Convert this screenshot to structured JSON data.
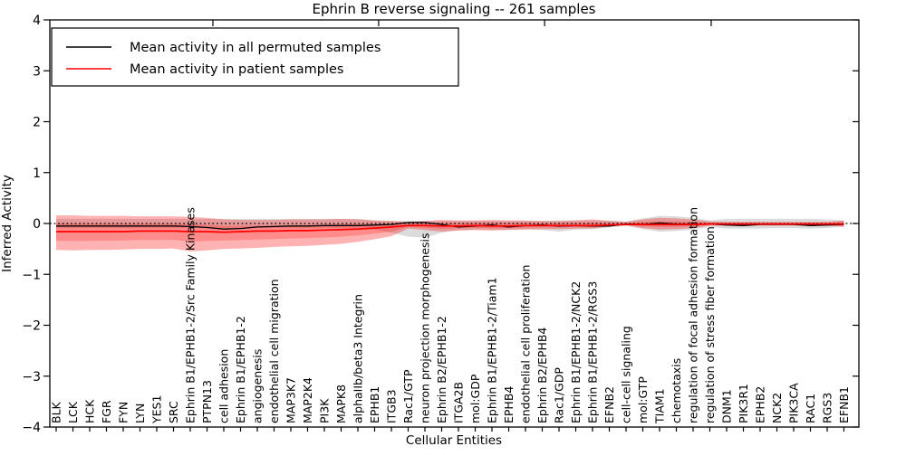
{
  "chart_data": {
    "type": "line",
    "title": "Ephrin B reverse signaling -- 261 samples",
    "xlabel": "Cellular Entities",
    "ylabel": "Inferred Activity",
    "ylim": [
      -4,
      4
    ],
    "yticks": [
      "4",
      "3",
      "2",
      "1",
      "0",
      "-1",
      "-2",
      "-3",
      "-4"
    ],
    "ytick_values": [
      4,
      3,
      2,
      1,
      0,
      -1,
      -2,
      -3,
      -4
    ],
    "top_tick_data_x": [
      9.35,
      19.24,
      29.14,
      39.08
    ],
    "grid": false,
    "zero_reference_line": "dotted at y=0",
    "legend": {
      "position": "upper left",
      "entries": [
        {
          "label": "Mean activity in all permuted samples",
          "color": "#000000"
        },
        {
          "label": "Mean activity in patient samples",
          "color": "#ff0000"
        }
      ]
    },
    "colors": {
      "patient": "#ff0000",
      "permuted": "#000000",
      "patient_band_fill": "#ff0000",
      "permuted_band_fill": "#888888",
      "frame": "#000000",
      "background": "#ffffff"
    },
    "categories": [
      "BLK",
      "LCK",
      "HCK",
      "FGR",
      "FYN",
      "LYN",
      "YES1",
      "SRC",
      "Ephrin B1/EPHB1-2/Src Family Kinases",
      "PTPN13",
      "cell adhesion",
      "Ephrin B1/EPHB1-2",
      "angiogenesis",
      "endothelial cell migration",
      "MAP3K7",
      "MAP2K4",
      "PI3K",
      "MAPK8",
      "alphaIIb/beta3 Integrin",
      "EPHB1",
      "ITGB3",
      "Rac1/GTP",
      "neuron projection morphogenesis",
      "Ephrin B2/EPHB1-2",
      "ITGA2B",
      "mol:GDP",
      "Ephrin B1/EPHB1-2/Tiam1",
      "EPHB4",
      "endothelial cell proliferation",
      "Ephrin B2/EPHB4",
      "Rac1/GDP",
      "Ephrin B1/EPHB1-2/NCK2",
      "Ephrin B1/EPHB1-2/RGS3",
      "EFNB2",
      "cell-cell signaling",
      "mol:GTP",
      "TIAM1",
      "chemotaxis",
      "regulation of focal adhesion formation",
      "regulation of stress fiber formation",
      "DNM1",
      "PIK3R1",
      "EPHB2",
      "NCK2",
      "PIK3CA",
      "RAC1",
      "RGS3",
      "EFNB1"
    ],
    "series": [
      {
        "name": "Mean activity in all permuted samples",
        "color": "#000000",
        "values": [
          -0.05,
          -0.05,
          -0.05,
          -0.05,
          -0.05,
          -0.05,
          -0.05,
          -0.05,
          -0.06,
          -0.08,
          -0.11,
          -0.1,
          -0.07,
          -0.06,
          -0.05,
          -0.05,
          -0.04,
          -0.04,
          -0.04,
          -0.03,
          -0.02,
          0.02,
          0.02,
          -0.02,
          -0.07,
          -0.05,
          -0.03,
          -0.07,
          -0.04,
          -0.03,
          -0.05,
          -0.04,
          -0.05,
          -0.05,
          -0.01,
          -0.02,
          0.01,
          -0.01,
          -0.02,
          -0.01,
          -0.03,
          -0.04,
          -0.02,
          -0.02,
          -0.02,
          -0.04,
          -0.03,
          -0.02
        ]
      },
      {
        "name": "Mean activity in patient samples",
        "color": "#ff0000",
        "values": [
          -0.16,
          -0.16,
          -0.16,
          -0.16,
          -0.16,
          -0.15,
          -0.15,
          -0.15,
          -0.16,
          -0.16,
          -0.17,
          -0.16,
          -0.15,
          -0.15,
          -0.14,
          -0.14,
          -0.13,
          -0.12,
          -0.11,
          -0.09,
          -0.07,
          -0.04,
          -0.04,
          -0.05,
          -0.05,
          -0.04,
          -0.05,
          -0.05,
          -0.04,
          -0.04,
          -0.04,
          -0.04,
          -0.04,
          -0.03,
          -0.02,
          -0.02,
          -0.02,
          -0.02,
          -0.02,
          -0.01,
          -0.01,
          -0.01,
          -0.01,
          -0.01,
          -0.01,
          -0.01,
          -0.01,
          -0.01
        ]
      }
    ],
    "bands": [
      {
        "name": "permuted-samples-envelope",
        "color": "#888888",
        "opacity": 0.3,
        "upper": [
          0.09,
          0.09,
          0.09,
          0.09,
          0.09,
          0.09,
          0.09,
          0.09,
          0.09,
          0.09,
          0.09,
          0.09,
          0.09,
          0.09,
          0.09,
          0.09,
          0.09,
          0.09,
          0.09,
          0.06,
          0.05,
          0.05,
          0.05,
          0.05,
          0.05,
          0.05,
          0.05,
          0.05,
          0.05,
          0.05,
          0.06,
          0.06,
          0.06,
          0.06,
          0.04,
          0.1,
          0.15,
          0.14,
          0.11,
          0.06,
          0.09,
          0.09,
          0.09,
          0.09,
          0.09,
          0.09,
          0.08,
          0.06
        ],
        "lower": [
          -0.09,
          -0.09,
          -0.09,
          -0.09,
          -0.09,
          -0.09,
          -0.09,
          -0.09,
          -0.09,
          -0.09,
          -0.09,
          -0.09,
          -0.09,
          -0.09,
          -0.09,
          -0.09,
          -0.09,
          -0.09,
          -0.09,
          -0.12,
          -0.18,
          -0.26,
          -0.28,
          -0.18,
          -0.13,
          -0.12,
          -0.12,
          -0.12,
          -0.11,
          -0.13,
          -0.16,
          -0.12,
          -0.11,
          -0.08,
          -0.05,
          -0.11,
          -0.16,
          -0.15,
          -0.12,
          -0.07,
          -0.1,
          -0.1,
          -0.1,
          -0.09,
          -0.09,
          -0.1,
          -0.09,
          -0.06
        ]
      },
      {
        "name": "patient-samples-envelope",
        "color": "#ff0000",
        "opacity": 0.3,
        "inner_band_fraction": 0.5,
        "inner_band_opacity": 0.22,
        "upper": [
          0.16,
          0.16,
          0.15,
          0.15,
          0.15,
          0.14,
          0.14,
          0.14,
          0.13,
          0.11,
          0.08,
          0.07,
          0.07,
          0.07,
          0.08,
          0.08,
          0.08,
          0.09,
          0.08,
          0.06,
          0.05,
          0.03,
          0.05,
          0.07,
          0.06,
          0.06,
          0.07,
          0.06,
          0.06,
          0.05,
          0.05,
          0.06,
          0.08,
          0.05,
          0.03,
          0.08,
          0.11,
          0.1,
          0.08,
          0.04,
          0.03,
          0.03,
          0.03,
          0.03,
          0.03,
          0.03,
          0.03,
          0.06
        ],
        "lower": [
          -0.52,
          -0.53,
          -0.52,
          -0.52,
          -0.51,
          -0.5,
          -0.5,
          -0.49,
          -0.55,
          -0.53,
          -0.5,
          -0.49,
          -0.48,
          -0.46,
          -0.45,
          -0.44,
          -0.42,
          -0.4,
          -0.36,
          -0.31,
          -0.25,
          -0.1,
          -0.13,
          -0.16,
          -0.14,
          -0.13,
          -0.14,
          -0.13,
          -0.12,
          -0.11,
          -0.11,
          -0.1,
          -0.1,
          -0.06,
          -0.03,
          -0.09,
          -0.12,
          -0.11,
          -0.09,
          -0.04,
          -0.04,
          -0.04,
          -0.04,
          -0.04,
          -0.04,
          -0.04,
          -0.04,
          -0.07
        ]
      }
    ]
  }
}
